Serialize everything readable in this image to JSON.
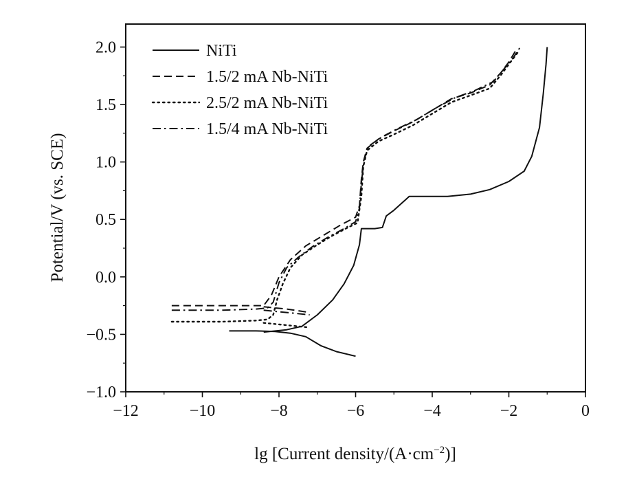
{
  "chart_data": {
    "type": "line",
    "xlabel_main": "lg [Current density/(A·cm",
    "xlabel_sup": "−2",
    "xlabel_tail": ")]",
    "ylabel": "Potential/V (vs. SCE)",
    "xlim": [
      -12,
      0
    ],
    "ylim": [
      -1.0,
      2.2
    ],
    "xticks": [
      -12,
      -10,
      -8,
      -6,
      -4,
      -2,
      0
    ],
    "xtick_labels": [
      "−12",
      "−10",
      "−8",
      "−6",
      "−4",
      "−2",
      "0"
    ],
    "yticks": [
      -1.0,
      -0.5,
      0.0,
      0.5,
      1.0,
      1.5,
      2.0
    ],
    "ytick_labels": [
      "−1.0",
      "−0.5",
      "0.0",
      "0.5",
      "1.0",
      "1.5",
      "2.0"
    ],
    "grid": false,
    "legend_position": "top-left",
    "series": [
      {
        "name": "NiTi",
        "style": "solid",
        "points": [
          [
            -9.3,
            -0.47
          ],
          [
            -8.6,
            -0.47
          ],
          [
            -8.1,
            -0.475
          ],
          [
            -7.7,
            -0.49
          ],
          [
            -7.3,
            -0.52
          ],
          [
            -6.9,
            -0.6
          ],
          [
            -6.5,
            -0.65
          ],
          [
            -6.0,
            -0.69
          ],
          "break",
          [
            -8.4,
            -0.48
          ],
          [
            -7.8,
            -0.46
          ],
          [
            -7.4,
            -0.43
          ],
          [
            -7.0,
            -0.33
          ],
          [
            -6.6,
            -0.2
          ],
          [
            -6.3,
            -0.06
          ],
          [
            -6.05,
            0.1
          ],
          [
            -5.9,
            0.28
          ],
          [
            -5.85,
            0.42
          ],
          [
            -5.5,
            0.42
          ],
          [
            -5.3,
            0.43
          ],
          [
            -5.2,
            0.53
          ],
          [
            -5.0,
            0.58
          ],
          [
            -4.7,
            0.67
          ],
          [
            -4.6,
            0.7
          ],
          [
            -4.2,
            0.7
          ],
          [
            -3.6,
            0.7
          ],
          [
            -3.0,
            0.72
          ],
          [
            -2.5,
            0.76
          ],
          [
            -2.0,
            0.83
          ],
          [
            -1.6,
            0.92
          ],
          [
            -1.4,
            1.05
          ],
          [
            -1.2,
            1.3
          ],
          [
            -1.1,
            1.6
          ],
          [
            -1.03,
            1.85
          ],
          [
            -1.0,
            2.0
          ]
        ]
      },
      {
        "name": "1.5/2 mA Nb-NiTi",
        "style": "dashed",
        "points": [
          [
            -10.8,
            -0.25
          ],
          [
            -9.5,
            -0.25
          ],
          [
            -8.7,
            -0.25
          ],
          [
            -8.4,
            -0.25
          ],
          [
            -8.2,
            -0.16
          ],
          [
            -8.0,
            0.0
          ],
          [
            -7.7,
            0.15
          ],
          [
            -7.3,
            0.27
          ],
          [
            -6.8,
            0.37
          ],
          [
            -6.4,
            0.45
          ],
          [
            -6.0,
            0.52
          ],
          [
            -5.9,
            0.62
          ],
          [
            -5.85,
            0.85
          ],
          [
            -5.8,
            1.0
          ],
          [
            -5.7,
            1.12
          ],
          [
            -5.4,
            1.2
          ],
          [
            -5.0,
            1.27
          ],
          [
            -4.5,
            1.35
          ],
          [
            -4.0,
            1.45
          ],
          [
            -3.5,
            1.55
          ],
          [
            -3.0,
            1.6
          ],
          [
            -2.5,
            1.67
          ],
          [
            -2.2,
            1.78
          ],
          [
            -2.0,
            1.87
          ],
          [
            -1.8,
            1.98
          ],
          "break",
          [
            -8.4,
            -0.26
          ],
          [
            -7.8,
            -0.28
          ],
          [
            -7.2,
            -0.31
          ]
        ]
      },
      {
        "name": "2.5/2 mA Nb-NiTi",
        "style": "dotted",
        "points": [
          [
            -10.8,
            -0.39
          ],
          [
            -9.5,
            -0.39
          ],
          [
            -8.6,
            -0.38
          ],
          [
            -8.3,
            -0.37
          ],
          [
            -8.15,
            -0.33
          ],
          [
            -8.05,
            -0.2
          ],
          [
            -7.9,
            -0.06
          ],
          [
            -7.7,
            0.08
          ],
          [
            -7.4,
            0.19
          ],
          [
            -7.0,
            0.28
          ],
          [
            -6.6,
            0.36
          ],
          [
            -6.2,
            0.43
          ],
          [
            -5.95,
            0.47
          ],
          [
            -5.85,
            0.7
          ],
          [
            -5.8,
            0.96
          ],
          [
            -5.7,
            1.1
          ],
          [
            -5.4,
            1.18
          ],
          [
            -5.0,
            1.24
          ],
          [
            -4.5,
            1.32
          ],
          [
            -4.0,
            1.42
          ],
          [
            -3.5,
            1.52
          ],
          [
            -3.0,
            1.58
          ],
          [
            -2.5,
            1.64
          ],
          [
            -2.2,
            1.76
          ],
          [
            -2.0,
            1.85
          ],
          [
            -1.75,
            1.96
          ],
          "break",
          [
            -8.4,
            -0.4
          ],
          [
            -7.8,
            -0.42
          ],
          [
            -7.2,
            -0.44
          ]
        ]
      },
      {
        "name": "1.5/4 mA Nb-NiTi",
        "style": "dashdot",
        "points": [
          [
            -10.8,
            -0.29
          ],
          [
            -9.5,
            -0.29
          ],
          [
            -8.6,
            -0.28
          ],
          [
            -8.3,
            -0.27
          ],
          [
            -8.15,
            -0.22
          ],
          [
            -8.0,
            -0.05
          ],
          [
            -7.8,
            0.08
          ],
          [
            -7.5,
            0.17
          ],
          [
            -7.1,
            0.27
          ],
          [
            -6.7,
            0.35
          ],
          [
            -6.3,
            0.42
          ],
          [
            -6.0,
            0.48
          ],
          [
            -5.9,
            0.6
          ],
          [
            -5.85,
            0.82
          ],
          [
            -5.78,
            1.02
          ],
          [
            -5.65,
            1.14
          ],
          [
            -5.3,
            1.22
          ],
          [
            -4.9,
            1.29
          ],
          [
            -4.4,
            1.37
          ],
          [
            -3.9,
            1.47
          ],
          [
            -3.4,
            1.56
          ],
          [
            -2.9,
            1.62
          ],
          [
            -2.4,
            1.7
          ],
          [
            -2.1,
            1.82
          ],
          [
            -1.9,
            1.9
          ],
          [
            -1.7,
            2.0
          ],
          "break",
          [
            -8.4,
            -0.29
          ],
          [
            -7.8,
            -0.31
          ],
          [
            -7.2,
            -0.33
          ]
        ]
      }
    ]
  }
}
